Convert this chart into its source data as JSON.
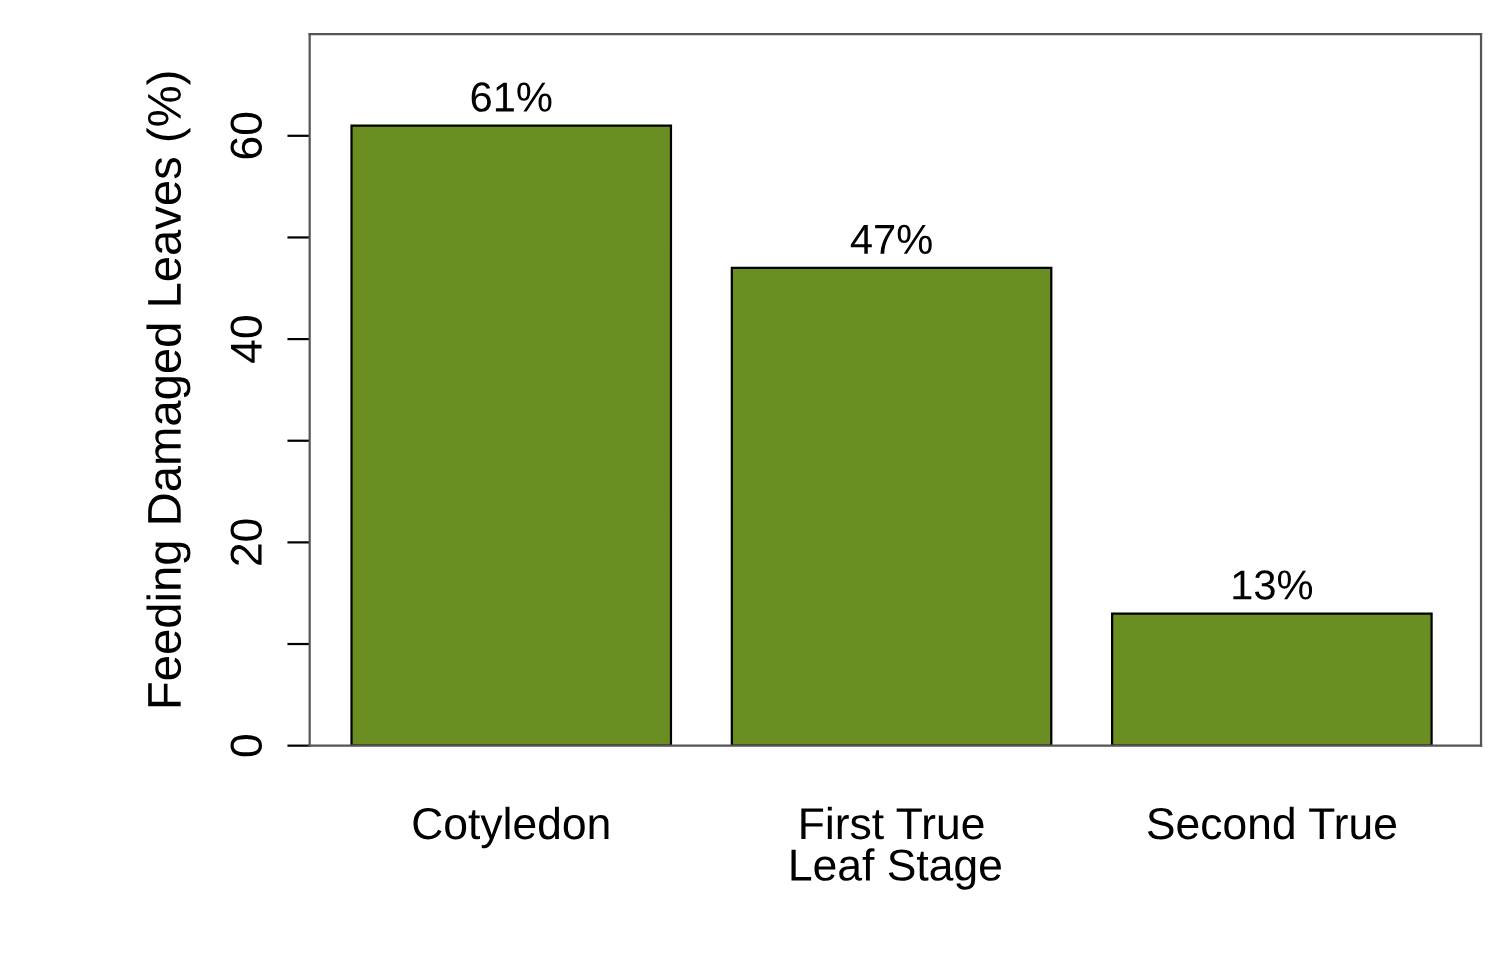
{
  "chart_data": {
    "type": "bar",
    "xlabel": "Leaf Stage",
    "ylabel": "Feeding Damaged Leaves (%)",
    "categories": [
      "Cotyledon",
      "First True",
      "Second True"
    ],
    "values": [
      61,
      47,
      13
    ],
    "value_labels": [
      "61%",
      "47%",
      "13%"
    ],
    "color": "#6b8e23",
    "ylim": [
      0,
      70
    ],
    "yticks": [
      0,
      {
        "value": 10,
        "label": null
      },
      20,
      {
        "value": 30,
        "label": null
      },
      40,
      {
        "value": 50,
        "label": null
      },
      60
    ],
    "grid": false
  }
}
